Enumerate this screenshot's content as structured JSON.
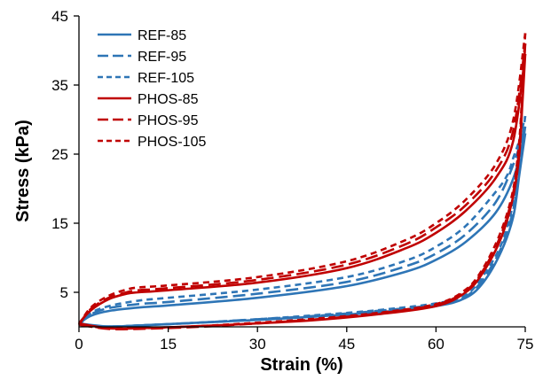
{
  "chart_data": {
    "type": "line",
    "xlabel": "Strain (%)",
    "ylabel": "Stress (kPa)",
    "xlim": [
      0,
      75
    ],
    "ylim": [
      0,
      45
    ],
    "xticks": [
      0,
      15,
      30,
      45,
      60,
      75
    ],
    "yticks": [
      5,
      15,
      25,
      35,
      45
    ],
    "legend_position": "top-left",
    "grid": false,
    "series": [
      {
        "name": "REF-85",
        "color": "#2e75b6",
        "dash": "solid",
        "loading": [
          [
            0,
            0.5
          ],
          [
            2,
            1.6
          ],
          [
            5,
            2.3
          ],
          [
            10,
            2.8
          ],
          [
            15,
            3.1
          ],
          [
            30,
            4.2
          ],
          [
            45,
            5.9
          ],
          [
            55,
            8.0
          ],
          [
            60,
            9.7
          ],
          [
            65,
            12.3
          ],
          [
            70,
            16.5
          ],
          [
            73,
            21.5
          ],
          [
            75,
            28.0
          ]
        ],
        "unloading": [
          [
            75,
            28.0
          ],
          [
            74,
            22.0
          ],
          [
            73,
            16.0
          ],
          [
            71,
            11.0
          ],
          [
            68,
            6.5
          ],
          [
            65,
            4.2
          ],
          [
            60,
            3.0
          ],
          [
            50,
            2.1
          ],
          [
            40,
            1.5
          ],
          [
            30,
            1.0
          ],
          [
            20,
            0.6
          ],
          [
            10,
            0.2
          ],
          [
            5,
            0.05
          ],
          [
            0,
            0.5
          ]
        ]
      },
      {
        "name": "REF-95",
        "color": "#2e75b6",
        "dash": "long",
        "loading": [
          [
            0,
            0.3
          ],
          [
            2,
            1.8
          ],
          [
            5,
            2.7
          ],
          [
            10,
            3.3
          ],
          [
            15,
            3.6
          ],
          [
            30,
            4.8
          ],
          [
            45,
            6.5
          ],
          [
            55,
            8.8
          ],
          [
            60,
            10.6
          ],
          [
            65,
            13.4
          ],
          [
            70,
            18.0
          ],
          [
            73,
            23.5
          ],
          [
            75,
            29.0
          ]
        ],
        "unloading": [
          [
            75,
            29.0
          ],
          [
            74,
            23.0
          ],
          [
            73,
            17.0
          ],
          [
            71,
            11.5
          ],
          [
            68,
            7.0
          ],
          [
            65,
            4.4
          ],
          [
            60,
            3.2
          ],
          [
            50,
            2.3
          ],
          [
            40,
            1.6
          ],
          [
            30,
            1.1
          ],
          [
            20,
            0.6
          ],
          [
            10,
            0.2
          ],
          [
            5,
            0.05
          ],
          [
            0,
            0.3
          ]
        ]
      },
      {
        "name": "REF-105",
        "color": "#2e75b6",
        "dash": "short",
        "loading": [
          [
            0,
            0.3
          ],
          [
            2,
            2.0
          ],
          [
            5,
            3.0
          ],
          [
            10,
            3.8
          ],
          [
            15,
            4.2
          ],
          [
            30,
            5.4
          ],
          [
            45,
            7.2
          ],
          [
            55,
            9.6
          ],
          [
            60,
            11.6
          ],
          [
            65,
            14.6
          ],
          [
            70,
            19.5
          ],
          [
            72,
            22.0
          ],
          [
            73,
            24.5
          ],
          [
            74,
            27.0
          ],
          [
            75,
            30.5
          ]
        ],
        "unloading": [
          [
            75,
            30.5
          ],
          [
            74,
            24.0
          ],
          [
            73,
            18.0
          ],
          [
            71,
            12.0
          ],
          [
            68,
            7.5
          ],
          [
            65,
            4.6
          ],
          [
            60,
            3.4
          ],
          [
            50,
            2.4
          ],
          [
            40,
            1.7
          ],
          [
            30,
            1.1
          ],
          [
            20,
            0.6
          ],
          [
            10,
            0.2
          ],
          [
            5,
            0.05
          ],
          [
            0,
            0.3
          ]
        ]
      },
      {
        "name": "PHOS-85",
        "color": "#c00000",
        "dash": "solid",
        "loading": [
          [
            0,
            0.5
          ],
          [
            2,
            2.4
          ],
          [
            5,
            4.0
          ],
          [
            8,
            4.8
          ],
          [
            10,
            5.0
          ],
          [
            15,
            5.3
          ],
          [
            30,
            6.4
          ],
          [
            45,
            8.5
          ],
          [
            55,
            11.4
          ],
          [
            60,
            13.6
          ],
          [
            65,
            16.8
          ],
          [
            70,
            21.5
          ],
          [
            73,
            27.0
          ],
          [
            75,
            39.5
          ]
        ],
        "unloading": [
          [
            75,
            39.5
          ],
          [
            74.5,
            32.0
          ],
          [
            74,
            25.0
          ],
          [
            73,
            19.0
          ],
          [
            71,
            13.0
          ],
          [
            68,
            8.0
          ],
          [
            65,
            5.0
          ],
          [
            60,
            3.0
          ],
          [
            50,
            1.8
          ],
          [
            40,
            1.0
          ],
          [
            30,
            0.5
          ],
          [
            20,
            0.1
          ],
          [
            10,
            -0.2
          ],
          [
            5,
            -0.2
          ],
          [
            0,
            0.5
          ]
        ]
      },
      {
        "name": "PHOS-95",
        "color": "#c00000",
        "dash": "long",
        "loading": [
          [
            0,
            0.3
          ],
          [
            2,
            2.6
          ],
          [
            5,
            4.2
          ],
          [
            8,
            5.0
          ],
          [
            10,
            5.3
          ],
          [
            15,
            5.6
          ],
          [
            30,
            6.8
          ],
          [
            45,
            9.0
          ],
          [
            55,
            12.0
          ],
          [
            60,
            14.4
          ],
          [
            65,
            17.6
          ],
          [
            70,
            22.5
          ],
          [
            73,
            28.5
          ],
          [
            75,
            41.0
          ]
        ],
        "unloading": [
          [
            75,
            41.0
          ],
          [
            74.5,
            33.0
          ],
          [
            74,
            26.0
          ],
          [
            73,
            19.5
          ],
          [
            71,
            13.5
          ],
          [
            68,
            8.3
          ],
          [
            65,
            5.2
          ],
          [
            60,
            3.2
          ],
          [
            50,
            1.9
          ],
          [
            40,
            1.1
          ],
          [
            30,
            0.5
          ],
          [
            20,
            0.0
          ],
          [
            10,
            -0.3
          ],
          [
            5,
            -0.3
          ],
          [
            0,
            0.3
          ]
        ]
      },
      {
        "name": "PHOS-105",
        "color": "#c00000",
        "dash": "short",
        "loading": [
          [
            0,
            0.3
          ],
          [
            2,
            2.8
          ],
          [
            5,
            4.5
          ],
          [
            8,
            5.4
          ],
          [
            10,
            5.7
          ],
          [
            15,
            6.0
          ],
          [
            30,
            7.2
          ],
          [
            45,
            9.5
          ],
          [
            55,
            12.6
          ],
          [
            60,
            15.0
          ],
          [
            65,
            18.4
          ],
          [
            70,
            23.5
          ],
          [
            73,
            30.0
          ],
          [
            75,
            42.5
          ]
        ],
        "unloading": [
          [
            75,
            42.5
          ],
          [
            74.5,
            34.0
          ],
          [
            74,
            27.0
          ],
          [
            73,
            20.0
          ],
          [
            71,
            14.0
          ],
          [
            68,
            8.6
          ],
          [
            65,
            5.4
          ],
          [
            60,
            3.3
          ],
          [
            50,
            2.0
          ],
          [
            40,
            1.2
          ],
          [
            30,
            0.6
          ],
          [
            20,
            0.1
          ],
          [
            10,
            -0.2
          ],
          [
            5,
            -0.2
          ],
          [
            0,
            0.3
          ]
        ]
      }
    ]
  }
}
